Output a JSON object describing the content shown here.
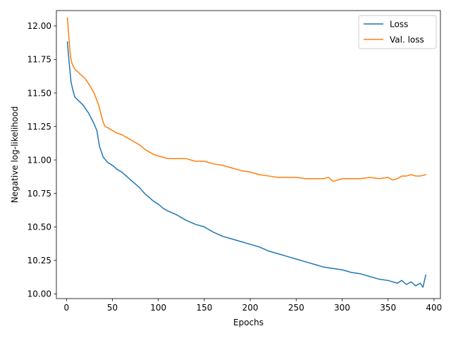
{
  "chart_data": {
    "type": "line",
    "xlabel": "Epochs",
    "ylabel": "Negative log-likelihood",
    "xlim": [
      -11,
      407
    ],
    "ylim": [
      9.965,
      12.115
    ],
    "xticks": [
      0,
      50,
      100,
      150,
      200,
      250,
      300,
      350,
      400
    ],
    "yticks": [
      10.0,
      10.25,
      10.5,
      10.75,
      11.0,
      11.25,
      11.5,
      11.75,
      12.0
    ],
    "ytick_labels": [
      "10.00",
      "10.25",
      "10.50",
      "10.75",
      "11.00",
      "11.25",
      "11.50",
      "11.75",
      "12.00"
    ],
    "grid": false,
    "legend_position": "upper right",
    "series": [
      {
        "name": "Loss",
        "color": "#1f77b4",
        "x": [
          1,
          3,
          5,
          7,
          9,
          12,
          15,
          18,
          21,
          24,
          27,
          30,
          33,
          36,
          40,
          45,
          50,
          55,
          60,
          65,
          70,
          75,
          80,
          85,
          90,
          95,
          100,
          105,
          110,
          120,
          130,
          140,
          150,
          160,
          170,
          180,
          190,
          200,
          210,
          220,
          230,
          240,
          250,
          260,
          270,
          280,
          290,
          300,
          310,
          320,
          330,
          340,
          350,
          360,
          365,
          370,
          375,
          380,
          385,
          388,
          391
        ],
        "y": [
          11.88,
          11.72,
          11.58,
          11.52,
          11.47,
          11.45,
          11.43,
          11.41,
          11.38,
          11.35,
          11.31,
          11.27,
          11.22,
          11.1,
          11.02,
          10.98,
          10.96,
          10.93,
          10.91,
          10.88,
          10.85,
          10.82,
          10.79,
          10.75,
          10.72,
          10.69,
          10.67,
          10.64,
          10.62,
          10.59,
          10.55,
          10.52,
          10.5,
          10.46,
          10.43,
          10.41,
          10.39,
          10.37,
          10.35,
          10.32,
          10.3,
          10.28,
          10.26,
          10.24,
          10.22,
          10.2,
          10.19,
          10.18,
          10.16,
          10.15,
          10.13,
          10.11,
          10.1,
          10.08,
          10.1,
          10.07,
          10.09,
          10.06,
          10.08,
          10.05,
          10.14
        ]
      },
      {
        "name": "Val. loss",
        "color": "#ff7f0e",
        "x": [
          1,
          2,
          3,
          4,
          5,
          6,
          8,
          10,
          12,
          15,
          20,
          25,
          30,
          35,
          38,
          40,
          42,
          45,
          50,
          55,
          60,
          65,
          70,
          75,
          80,
          85,
          90,
          95,
          100,
          110,
          120,
          130,
          140,
          150,
          160,
          170,
          180,
          190,
          200,
          210,
          220,
          230,
          240,
          250,
          260,
          270,
          280,
          285,
          290,
          300,
          310,
          320,
          330,
          340,
          350,
          355,
          360,
          365,
          370,
          375,
          380,
          385,
          391
        ],
        "y": [
          12.06,
          11.97,
          11.88,
          11.8,
          11.75,
          11.72,
          11.69,
          11.67,
          11.66,
          11.64,
          11.61,
          11.56,
          11.5,
          11.41,
          11.33,
          11.28,
          11.25,
          11.24,
          11.22,
          11.2,
          11.19,
          11.17,
          11.15,
          11.13,
          11.11,
          11.08,
          11.06,
          11.04,
          11.03,
          11.01,
          11.01,
          11.01,
          10.99,
          10.99,
          10.97,
          10.96,
          10.94,
          10.92,
          10.91,
          10.89,
          10.88,
          10.87,
          10.87,
          10.87,
          10.86,
          10.86,
          10.86,
          10.87,
          10.84,
          10.86,
          10.86,
          10.86,
          10.87,
          10.86,
          10.87,
          10.85,
          10.86,
          10.88,
          10.88,
          10.89,
          10.88,
          10.88,
          10.89
        ]
      }
    ]
  }
}
